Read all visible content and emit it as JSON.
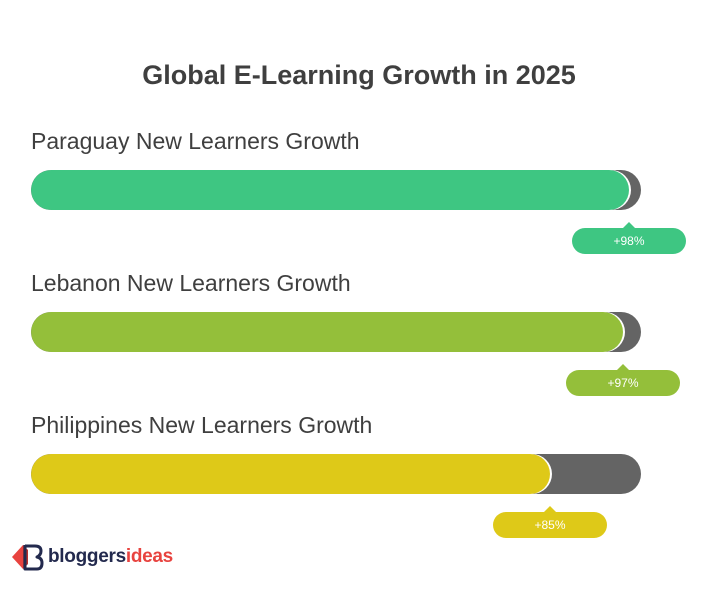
{
  "chart_data": {
    "type": "bar",
    "title": "Global E-Learning Growth in 2025",
    "categories": [
      "Paraguay New Learners Growth",
      "Lebanon New Learners Growth",
      "Philippines New Learners Growth"
    ],
    "values": [
      98,
      97,
      85
    ],
    "value_labels": [
      "+98%",
      "+97%",
      "+85%"
    ],
    "max": 100,
    "colors": [
      "#3ec682",
      "#94bf3a",
      "#dec918"
    ],
    "track_color": "#646464"
  },
  "brand": {
    "name_part1": "bloggers",
    "name_part2": "ideas",
    "logo_icon": "bloggersideas-logo-icon"
  }
}
